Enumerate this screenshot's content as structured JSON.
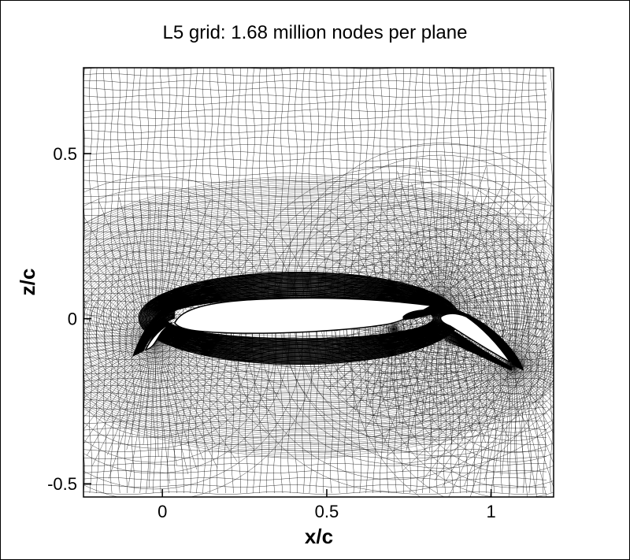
{
  "title": "L5 grid: 1.68 million nodes per plane",
  "plot": {
    "xlabel": "x/c",
    "ylabel": "z/c",
    "xlim": [
      -0.24,
      1.19
    ],
    "ylim": [
      -0.54,
      0.76
    ],
    "x_ticks": [
      {
        "value": 0,
        "label": "0"
      },
      {
        "value": 0.5,
        "label": "0.5"
      },
      {
        "value": 1,
        "label": "1"
      }
    ],
    "y_ticks": [
      {
        "value": 0.5,
        "label": "0.5"
      },
      {
        "value": 0,
        "label": "0"
      },
      {
        "value": -0.5,
        "label": "-0.5"
      }
    ],
    "mesh_color": "#000000",
    "background_color": "#ffffff"
  }
}
